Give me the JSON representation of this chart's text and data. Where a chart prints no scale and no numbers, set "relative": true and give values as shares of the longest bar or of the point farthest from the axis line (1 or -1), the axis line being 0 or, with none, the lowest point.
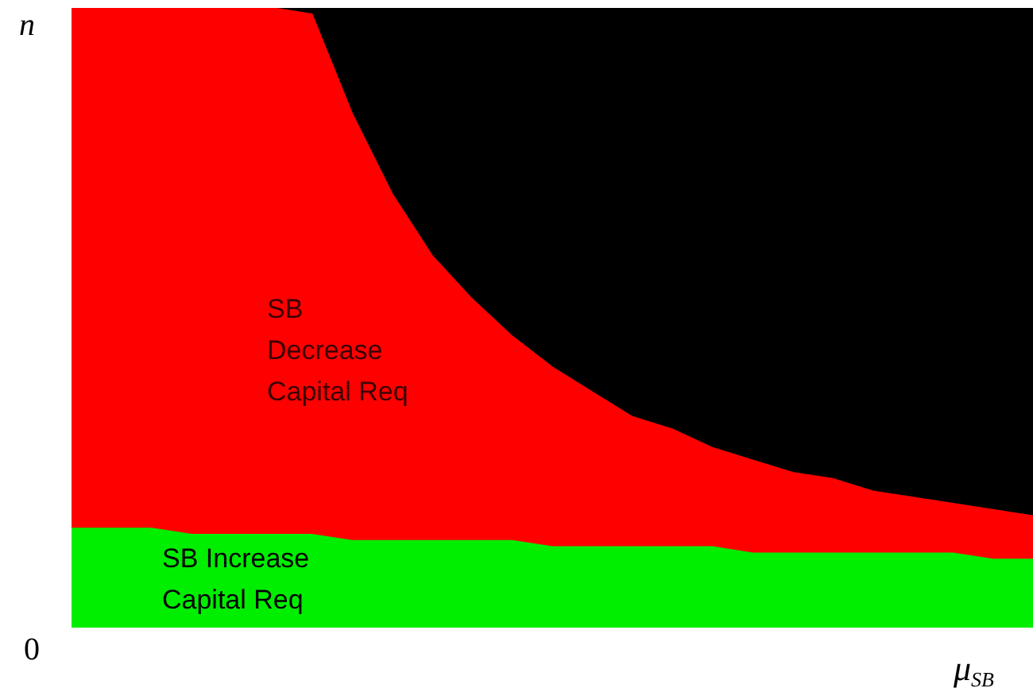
{
  "chart_data": {
    "type": "area",
    "stacked": true,
    "relative": true,
    "xlabel": "μ$_{SB}$",
    "ylabel": "n",
    "categories": [
      null,
      null,
      null,
      null,
      null,
      null,
      null,
      null,
      null,
      null,
      null,
      null,
      null,
      null,
      null,
      null,
      null,
      null,
      null,
      null,
      null,
      null,
      null,
      null,
      null
    ],
    "series": [
      {
        "color": "#00ee00",
        "values": [
          0.16,
          0.16,
          0.16,
          0.15,
          0.15,
          0.15,
          0.15,
          0.14,
          0.14,
          0.14,
          0.14,
          0.14,
          0.13,
          0.13,
          0.13,
          0.13,
          0.13,
          0.12,
          0.12,
          0.12,
          0.12,
          0.12,
          0.12,
          0.11,
          0.11
        ]
      },
      {
        "color": "#ff0000",
        "values": [
          0.84,
          0.84,
          0.84,
          0.85,
          0.85,
          0.85,
          0.84,
          0.69,
          0.56,
          0.46,
          0.39,
          0.33,
          0.29,
          0.25,
          0.21,
          0.19,
          0.16,
          0.15,
          0.13,
          0.12,
          0.1,
          0.09,
          0.08,
          0.08,
          0.07
        ]
      },
      {
        "color": "#000000",
        "values": [
          0,
          0,
          0,
          0,
          0,
          0,
          0.01,
          0.17,
          0.3,
          0.4,
          0.47,
          0.53,
          0.58,
          0.62,
          0.66,
          0.68,
          0.71,
          0.73,
          0.75,
          0.76,
          0.78,
          0.79,
          0.8,
          0.81,
          0.82
        ]
      }
    ],
    "annotations": [
      "SB Decrease Capital Req",
      "SB Increase Capital Req",
      "0"
    ]
  }
}
